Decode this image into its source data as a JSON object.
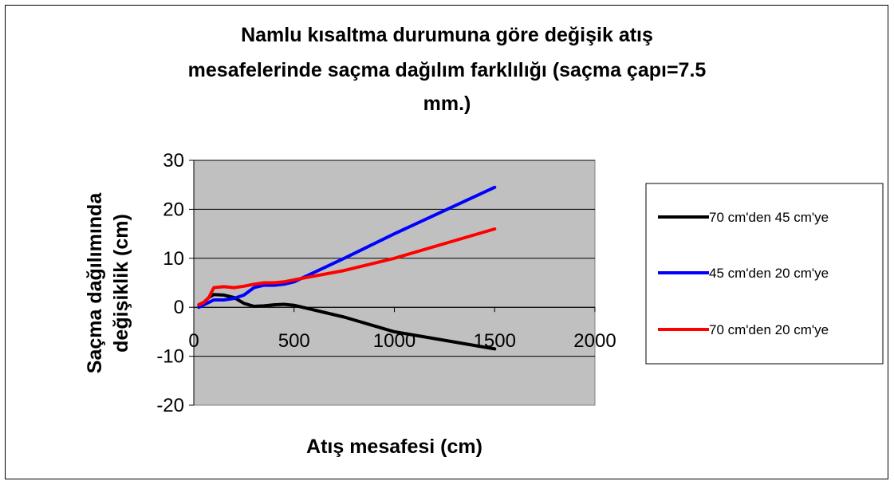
{
  "chart_data": {
    "type": "line",
    "title_lines": [
      "Namlu kısaltma durumuna göre değişik atış",
      "mesafelerinde saçma dağılım farklılığı (saçma çapı=7.5",
      "mm.)"
    ],
    "xlabel": "Atış mesafesi (cm)",
    "ylabel_lines": [
      "Saçma dağılımında",
      "değişiklik (cm)"
    ],
    "xlim": [
      0,
      2000
    ],
    "ylim": [
      -20,
      30
    ],
    "x_ticks": [
      0,
      500,
      1000,
      1500,
      2000
    ],
    "y_ticks": [
      30,
      20,
      10,
      0,
      -10,
      -20
    ],
    "x_tick_labels": [
      "0",
      "500",
      "1000",
      "1500",
      "2000"
    ],
    "y_tick_labels": [
      "30",
      "20",
      "10",
      "0",
      "-10",
      "-20"
    ],
    "grid": "horizontal",
    "plot_background": "#c0c0c0",
    "legend_position": "right",
    "series": [
      {
        "name": "70 cm'den 45 cm'ye",
        "color": "#000000",
        "points": [
          [
            25,
            0.5
          ],
          [
            50,
            1.0
          ],
          [
            75,
            2.0
          ],
          [
            100,
            2.6
          ],
          [
            150,
            2.5
          ],
          [
            200,
            2.0
          ],
          [
            250,
            0.8
          ],
          [
            300,
            0.2
          ],
          [
            350,
            0.3
          ],
          [
            400,
            0.5
          ],
          [
            450,
            0.6
          ],
          [
            500,
            0.4
          ],
          [
            750,
            -2.0
          ],
          [
            1000,
            -5.0
          ],
          [
            1500,
            -8.5
          ]
        ]
      },
      {
        "name": "45 cm'den 20 cm'ye",
        "color": "#0000ff",
        "points": [
          [
            25,
            0.0
          ],
          [
            50,
            0.5
          ],
          [
            75,
            1.0
          ],
          [
            100,
            1.5
          ],
          [
            150,
            1.5
          ],
          [
            200,
            1.8
          ],
          [
            250,
            2.5
          ],
          [
            300,
            4.0
          ],
          [
            350,
            4.5
          ],
          [
            400,
            4.5
          ],
          [
            450,
            4.7
          ],
          [
            500,
            5.2
          ],
          [
            750,
            10.0
          ],
          [
            1000,
            15.0
          ],
          [
            1500,
            24.5
          ]
        ]
      },
      {
        "name": "70 cm'den 20 cm'ye",
        "color": "#ff0000",
        "points": [
          [
            25,
            0.5
          ],
          [
            50,
            1.0
          ],
          [
            75,
            2.0
          ],
          [
            100,
            4.0
          ],
          [
            150,
            4.2
          ],
          [
            200,
            4.0
          ],
          [
            250,
            4.3
          ],
          [
            300,
            4.7
          ],
          [
            350,
            5.0
          ],
          [
            400,
            5.0
          ],
          [
            450,
            5.2
          ],
          [
            500,
            5.6
          ],
          [
            750,
            7.5
          ],
          [
            1000,
            10.0
          ],
          [
            1500,
            16.0
          ]
        ]
      }
    ]
  }
}
